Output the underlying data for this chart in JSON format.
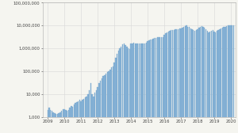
{
  "title": "",
  "ylabel": "",
  "xlabel": "",
  "bar_color": "#8ab4d8",
  "bar_edge_color": "#6a9fc8",
  "background_color": "#f5f5f0",
  "grid_color": "#d8d8d8",
  "ylim_log": [
    1000,
    100000000
  ],
  "yticks": [
    1000,
    10000,
    100000,
    1000000,
    10000000,
    100000000
  ],
  "ytick_labels": [
    "1,000",
    "10,000",
    "100,000",
    "1,000,000",
    "10,000,000",
    "100,000,000"
  ],
  "xtick_labels": [
    "2009",
    "2010",
    "2011",
    "2012",
    "2013",
    "2014",
    "2015",
    "2016",
    "2017",
    "2018",
    "2019",
    "2020"
  ],
  "monthly_values": [
    2000,
    2500,
    2000,
    1800,
    1600,
    1500,
    1400,
    1400,
    1500,
    1600,
    1800,
    2200,
    2200,
    2000,
    1800,
    2000,
    2500,
    3000,
    2800,
    3500,
    4000,
    4500,
    5000,
    5500,
    5000,
    5500,
    6000,
    7000,
    8000,
    10000,
    15000,
    30000,
    10000,
    8000,
    12000,
    15000,
    20000,
    30000,
    40000,
    50000,
    60000,
    70000,
    80000,
    90000,
    100000,
    120000,
    150000,
    160000,
    250000,
    400000,
    600000,
    800000,
    1000000,
    1200000,
    1500000,
    1600000,
    1400000,
    1200000,
    1000000,
    900000,
    1600000,
    1600000,
    1800000,
    1600000,
    1600000,
    1600000,
    1600000,
    1600000,
    1600000,
    1600000,
    1600000,
    1800000,
    2000000,
    2200000,
    2400000,
    2400000,
    2600000,
    2800000,
    2800000,
    3000000,
    3200000,
    3000000,
    3000000,
    3200000,
    4000000,
    4500000,
    5000000,
    5500000,
    6000000,
    6200000,
    6500000,
    6500000,
    6800000,
    7000000,
    7000000,
    7500000,
    7500000,
    8000000,
    9000000,
    9500000,
    10000000,
    9000000,
    8500000,
    7500000,
    7000000,
    6500000,
    6000000,
    6200000,
    7000000,
    8000000,
    9000000,
    9500000,
    8500000,
    8000000,
    7000000,
    6000000,
    5000000,
    5500000,
    6000000,
    6500000,
    5500000,
    5000000,
    6000000,
    6500000,
    7000000,
    7500000,
    8000000,
    8500000,
    9000000,
    9500000,
    10000000,
    10000000,
    10000000,
    10000000,
    10500000
  ],
  "start_year": 2009,
  "start_month": 1,
  "figsize": [
    3.0,
    1.68
  ],
  "dpi": 100
}
